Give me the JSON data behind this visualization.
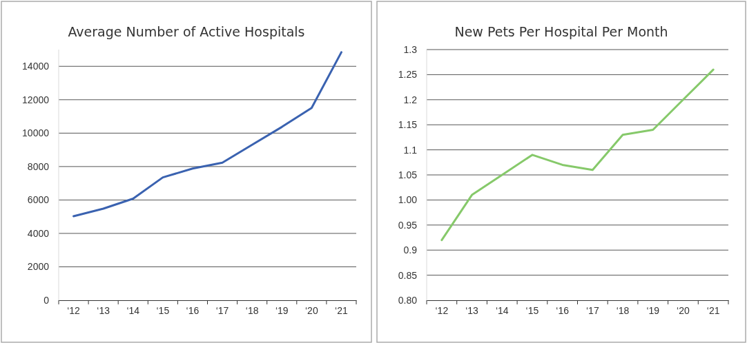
{
  "chart_data": [
    {
      "type": "line",
      "title": "Average Number of Active Hospitals",
      "categories": [
        "‘12",
        "‘13",
        "‘14",
        "‘15",
        "‘16",
        "‘17",
        "‘18",
        "‘19",
        "‘20",
        "‘21"
      ],
      "series": [
        {
          "color": "#3a62b0",
          "values": [
            5030,
            5480,
            6080,
            7350,
            7880,
            8230,
            9300,
            10370,
            11510,
            14840
          ]
        }
      ],
      "ylim": [
        0,
        15000
      ],
      "yticks": [
        0,
        2000,
        4000,
        6000,
        8000,
        10000,
        12000,
        14000
      ],
      "grid": "y",
      "marker": "none",
      "line_style": "solid"
    },
    {
      "type": "line",
      "title": "New Pets Per Hospital Per Month",
      "categories": [
        "‘12",
        "‘13",
        "‘14",
        "‘15",
        "‘16",
        "‘17",
        "‘18",
        "‘19",
        "‘20",
        "‘21"
      ],
      "series": [
        {
          "color": "#86c96a",
          "values": [
            0.92,
            1.01,
            1.05,
            1.09,
            1.07,
            1.06,
            1.13,
            1.14,
            1.2,
            1.26
          ]
        }
      ],
      "ylim": [
        0.8,
        1.3
      ],
      "yticks": [
        {
          "value": 0.8,
          "label": "0.80"
        },
        0.85,
        0.9,
        0.95,
        {
          "value": 1,
          "label": "1.00"
        },
        1.05,
        1.1,
        1.15,
        1.2,
        1.25,
        1.3
      ],
      "grid": "y",
      "marker": "none",
      "line_style": "solid"
    }
  ]
}
